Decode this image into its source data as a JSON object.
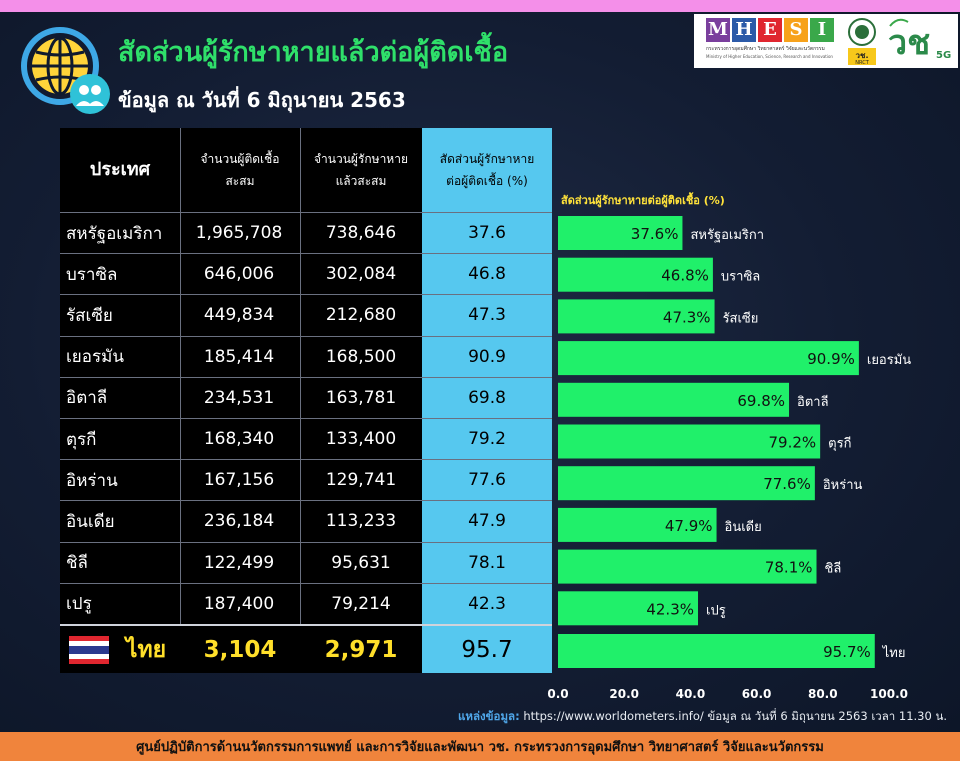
{
  "header": {
    "title": "สัดส่วนผู้รักษาหายแล้วต่อผู้ติดเชื้อ",
    "subtitle": "ข้อมูล ณ วันที่ 6 มิถุนายน 2563"
  },
  "logos": {
    "mhesi_letters": [
      "M",
      "H",
      "E",
      "S",
      "I"
    ],
    "mhesi_colors": [
      "#7a3f9d",
      "#2b5aa8",
      "#e0262f",
      "#f7a21b",
      "#3aa84a"
    ],
    "mhesi_th": "กระทรวงการอุดมศึกษา วิทยาศาสตร์ วิจัยและนวัตกรรม",
    "mhesi_en": "Ministry of Higher Education, Science, Research and Innovation",
    "nrct_label": "วช.",
    "nrct_sub": "NRCT",
    "logo5g_text": "วช",
    "logo5g_sub": "5G"
  },
  "table": {
    "headers": {
      "country": "ประเทศ",
      "infected": "จำนวนผู้ติดเชื้อ\nสะสม",
      "recovered": "จำนวนผู้รักษาหาย\nแล้วสะสม",
      "ratio": "สัดส่วนผู้รักษาหาย\nต่อผู้ติดเชื้อ (%)"
    },
    "rows": [
      {
        "country": "สหรัฐอเมริกา",
        "infected": "1,965,708",
        "recovered": "738,646",
        "ratio": "37.6"
      },
      {
        "country": "บราซิล",
        "infected": "646,006",
        "recovered": "302,084",
        "ratio": "46.8"
      },
      {
        "country": "รัสเซีย",
        "infected": "449,834",
        "recovered": "212,680",
        "ratio": "47.3"
      },
      {
        "country": "เยอรมัน",
        "infected": "185,414",
        "recovered": "168,500",
        "ratio": "90.9"
      },
      {
        "country": "อิตาลี",
        "infected": "234,531",
        "recovered": "163,781",
        "ratio": "69.8"
      },
      {
        "country": "ตุรกี",
        "infected": "168,340",
        "recovered": "133,400",
        "ratio": "79.2"
      },
      {
        "country": "อิหร่าน",
        "infected": "167,156",
        "recovered": "129,741",
        "ratio": "77.6"
      },
      {
        "country": "อินเดีย",
        "infected": "236,184",
        "recovered": "113,233",
        "ratio": "47.9"
      },
      {
        "country": "ชิลี",
        "infected": "122,499",
        "recovered": "95,631",
        "ratio": "78.1"
      },
      {
        "country": "เปรู",
        "infected": "187,400",
        "recovered": "79,214",
        "ratio": "42.3"
      }
    ],
    "thailand": {
      "country": "ไทย",
      "infected": "3,104",
      "recovered": "2,971",
      "ratio": "95.7"
    }
  },
  "chart_data": {
    "type": "bar",
    "orientation": "horizontal",
    "title": "สัดส่วนผู้รักษาหายต่อผู้ติดเชื้อ (%)",
    "categories": [
      "สหรัฐอเมริกา",
      "บราซิล",
      "รัสเซีย",
      "เยอรมัน",
      "อิตาลี",
      "ตุรกี",
      "อิหร่าน",
      "อินเดีย",
      "ชิลี",
      "เปรู",
      "ไทย"
    ],
    "values": [
      37.6,
      46.8,
      47.3,
      90.9,
      69.8,
      79.2,
      77.6,
      47.9,
      78.1,
      42.3,
      95.7
    ],
    "value_labels": [
      "37.6%",
      "46.8%",
      "47.3%",
      "90.9%",
      "69.8%",
      "79.2%",
      "77.6%",
      "47.9%",
      "78.1%",
      "42.3%",
      "95.7%"
    ],
    "xlim": [
      0,
      100
    ],
    "xticks": [
      "0.0",
      "20.0",
      "40.0",
      "60.0",
      "80.0",
      "100.0"
    ],
    "bar_color": "#20f06a",
    "grid": false
  },
  "source": {
    "label": "แหล่งข้อมูล:",
    "text": " https://www.worldometers.info/ ข้อมูล ณ วันที่ 6 มิถุนายน 2563 เวลา 11.30 น."
  },
  "footer": {
    "text": "ศูนย์ปฏิบัติการด้านนวัตกรรมการแพทย์ และการวิจัยและพัฒนา  วช.   กระทรวงการอุดมศึกษา วิทยาศาสตร์ วิจัยและนวัตกรรม"
  }
}
